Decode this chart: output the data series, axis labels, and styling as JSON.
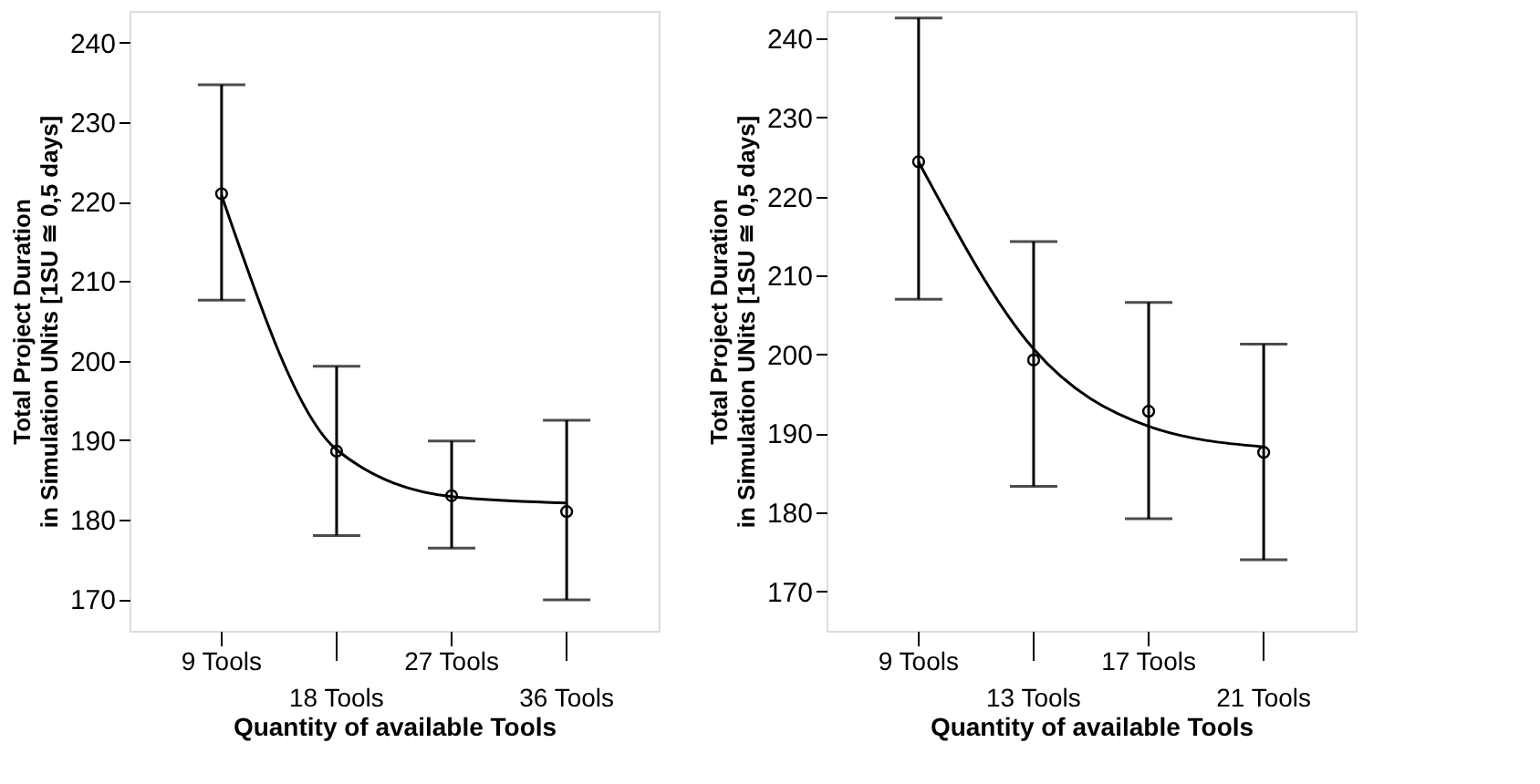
{
  "chart_data": [
    {
      "type": "scatter",
      "xlabel": "Quantity of available Tools",
      "ylabel": "Total Project Duration\nin Simulation UNits [1SU   ≅   0,5 days]",
      "categories": [
        "9 Tools",
        "18 Tools",
        "27 Tools",
        "36 Tools"
      ],
      "ylim": [
        166,
        244
      ],
      "yticks": [
        170,
        180,
        190,
        200,
        210,
        220,
        230,
        240
      ],
      "grid": false,
      "series": [
        {
          "color": "#000000",
          "marker": "circle",
          "values": [
            221.0,
            188.6,
            183.0,
            181.0
          ],
          "errors": [
            [
              207.6,
              234.7
            ],
            [
              178.0,
              199.3
            ],
            [
              176.4,
              189.9
            ],
            [
              169.9,
              192.5
            ]
          ]
        },
        {
          "type": "line",
          "color": "#000000",
          "line_style": "solid",
          "values": [
            220.8,
            188.8,
            182.9,
            182.1
          ]
        }
      ]
    },
    {
      "type": "scatter",
      "xlabel": "Quantity of available Tools",
      "ylabel": "Total Project Duration\nin Simulation UNits [1SU   ≅   0,5 days]",
      "categories": [
        "9 Tools",
        "13 Tools",
        "17 Tools",
        "21 Tools"
      ],
      "ylim": [
        165,
        243.5
      ],
      "yticks": [
        170,
        180,
        190,
        200,
        210,
        220,
        230,
        240
      ],
      "grid": false,
      "series": [
        {
          "color": "#000000",
          "marker": "circle",
          "values": [
            224.4,
            199.3,
            192.8,
            187.6
          ],
          "errors": [
            [
              207.0,
              242.6
            ],
            [
              183.3,
              214.3
            ],
            [
              179.2,
              206.6
            ],
            [
              174.0,
              201.3
            ]
          ]
        },
        {
          "type": "line",
          "color": "#000000",
          "line_style": "solid",
          "values": [
            224.4,
            200.7,
            190.9,
            188.3
          ]
        }
      ]
    }
  ]
}
